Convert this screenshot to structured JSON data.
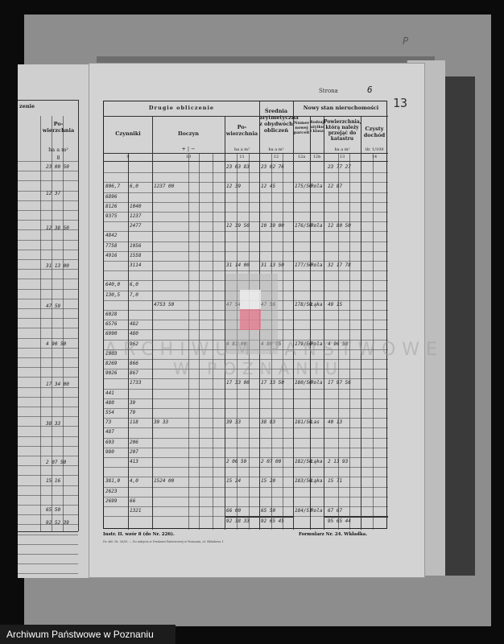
{
  "page": {
    "label": "Strona",
    "number": "6",
    "sheet_number": "13",
    "corner_mark": "P"
  },
  "headers": {
    "group_second": "Drugie obliczenie",
    "czynniki": "Czynniki",
    "iloczyn": "Iloczyn",
    "iloczyn_signs": "+     |     −",
    "powierzchnia": "Po-wierzchnia",
    "srednia": "Średnia arytmetyczna z obydwóch obliczeń",
    "group_new": "Nowy stan nieruchomości",
    "numer_parceli": "Numer nowej parceli",
    "rodzaj_uzytku": "Rodzaj użytku i klasa",
    "powierzchnia_kataster": "Powierzchnia, którą należy przejąć do katastru",
    "czysty_dochod": "Czysty dochód",
    "units_area": "ha   a   m²",
    "units_income": "tlr.   1/100",
    "col_numbers": [
      "9",
      "10",
      "11",
      "12",
      "12a",
      "12b",
      "13",
      "14"
    ]
  },
  "rows": [
    [
      "",
      "",
      "",
      "23 03 83",
      "23 02 76",
      "",
      "",
      "23 77 27"
    ],
    [
      "",
      "",
      "",
      "",
      "",
      "",
      "",
      ""
    ],
    [
      "806,7",
      "6,0",
      "1237 00",
      "12 39",
      "12 45",
      "175/50",
      "Rola",
      "12 87"
    ],
    [
      "6896",
      "",
      "",
      "",
      "",
      "",
      "",
      ""
    ],
    [
      "8126",
      "1040",
      "",
      "",
      "",
      "",
      "",
      ""
    ],
    [
      "9375",
      "1237",
      "",
      "",
      "",
      "",
      "",
      ""
    ],
    [
      "",
      "2477",
      "",
      "12 39 50",
      "10 39 00",
      "176/50",
      "Rola",
      "12 80 50"
    ],
    [
      "4842",
      "",
      "",
      "",
      "",
      "",
      "",
      ""
    ],
    [
      "7758",
      "1056",
      "",
      "",
      "",
      "",
      "",
      ""
    ],
    [
      "4916",
      "1558",
      "",
      "",
      "",
      "",
      "",
      ""
    ],
    [
      "",
      "3114",
      "",
      "31 14 00",
      "31 13 50",
      "177/50",
      "Rola",
      "32 17 78"
    ],
    [
      "",
      "",
      "",
      "",
      "",
      "",
      "",
      ""
    ],
    [
      "640,0",
      "6,0",
      "",
      "",
      "",
      "",
      "",
      ""
    ],
    [
      "130,5",
      "7,0",
      "",
      "",
      "",
      "",
      "",
      ""
    ],
    [
      "",
      "",
      "4753 50",
      "47 54",
      "47 56",
      "178/50",
      "Łąka",
      "49 15"
    ],
    [
      "6028",
      "",
      "",
      "",
      "",
      "",
      "",
      ""
    ],
    [
      "6576",
      "482",
      "",
      "",
      "",
      "",
      "",
      ""
    ],
    [
      "6990",
      "480",
      "",
      "",
      "",
      "",
      "",
      ""
    ],
    [
      "",
      "962",
      "",
      "4 81 00",
      "4 80 75",
      "179/50",
      "Rola",
      "4 96 58"
    ],
    [
      "1003",
      "",
      "",
      "",
      "",
      "",
      "",
      ""
    ],
    [
      "8269",
      "866",
      "",
      "",
      "",
      "",
      "",
      ""
    ],
    [
      "9026",
      "867",
      "",
      "",
      "",
      "",
      "",
      ""
    ],
    [
      "",
      "1733",
      "",
      "17 33 00",
      "17 33 50",
      "180/50",
      "Rola",
      "17 97 56"
    ],
    [
      "441",
      "",
      "",
      "",
      "",
      "",
      "",
      ""
    ],
    [
      "480",
      "39",
      "",
      "",
      "",
      "",
      "",
      ""
    ],
    [
      "554",
      "79",
      "",
      "",
      "",
      "",
      "",
      ""
    ],
    [
      "73",
      "118",
      "39 33",
      "39 33",
      "38 83",
      "181/50",
      "Las",
      "40 13"
    ],
    [
      "487",
      "",
      "",
      "",
      "",
      "",
      "",
      ""
    ],
    [
      "693",
      "206",
      "",
      "",
      "",
      "",
      "",
      ""
    ],
    [
      "980",
      "207",
      "",
      "",
      "",
      "",
      "",
      ""
    ],
    [
      "",
      "413",
      "",
      "2 06 50",
      "2 07 00",
      "182/50",
      "Łąka",
      "2 13 93"
    ],
    [
      "",
      "",
      "",
      "",
      "",
      "",
      "",
      ""
    ],
    [
      "381,0",
      "4,0",
      "1524 00",
      "15 24",
      "15 20",
      "183/50",
      "Łąka",
      "15 71"
    ],
    [
      "2623",
      "",
      "",
      "",
      "",
      "",
      "",
      ""
    ],
    [
      "2699",
      "66",
      "",
      "",
      "",
      "",
      "",
      ""
    ],
    [
      "",
      "1321",
      "",
      "66 00",
      "65 50",
      "184/51",
      "Rola",
      "67 67"
    ]
  ],
  "totals": {
    "col11": "92 38 33",
    "col12": "92 65 45",
    "col13": "95 65 44"
  },
  "left_page": {
    "header_partial": "zenie",
    "header": "Po-wierzchnia",
    "units": "ha  a  m²",
    "col_number": "8",
    "values": [
      "23 00 50",
      "12 37",
      "12 38 50",
      "31 13 00",
      "47 59",
      "4 90 50",
      "17 34 00",
      "38 33",
      "2 07 50",
      "15 16",
      "65 50"
    ],
    "total": "92 52 39"
  },
  "footer": {
    "instr": "Instr. II. wzór 8 (do Nr. 226).",
    "form": "Formularz Nr. 24. Wkładka.",
    "printer": "Dr. akt. Nr. 26/M. — Do nabycia w Drukarni Państwowej w Poznaniu, ul. Składowa 1."
  },
  "watermark": {
    "line1": "ARCHIWUM PAŃSTWOWE",
    "line2": "W POZNANIU"
  },
  "caption": "Archiwum Państwowe w Poznaniu"
}
